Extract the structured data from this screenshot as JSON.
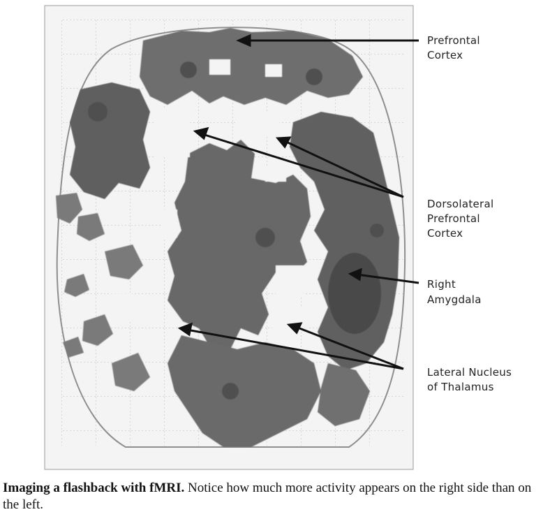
{
  "labels": {
    "prefrontal": [
      "Prefrontal",
      "Cortex"
    ],
    "dorsolateral": [
      "Dorsolateral",
      "Prefrontal",
      "Cortex"
    ],
    "amygdala": [
      "Right",
      "Amygdala"
    ],
    "thalamus": [
      "Lateral Nucleus",
      "of Thalamus"
    ]
  },
  "caption": {
    "title": "Imaging a flashback with fMRI.",
    "text": "Notice how much more activity appears on the right side than on the left."
  },
  "colors": {
    "activity_dark": "#4f4f4f",
    "activity_mid": "#6b6b6b",
    "activity_light": "#8a8a8a",
    "scan_background": "#f4f4f4"
  }
}
